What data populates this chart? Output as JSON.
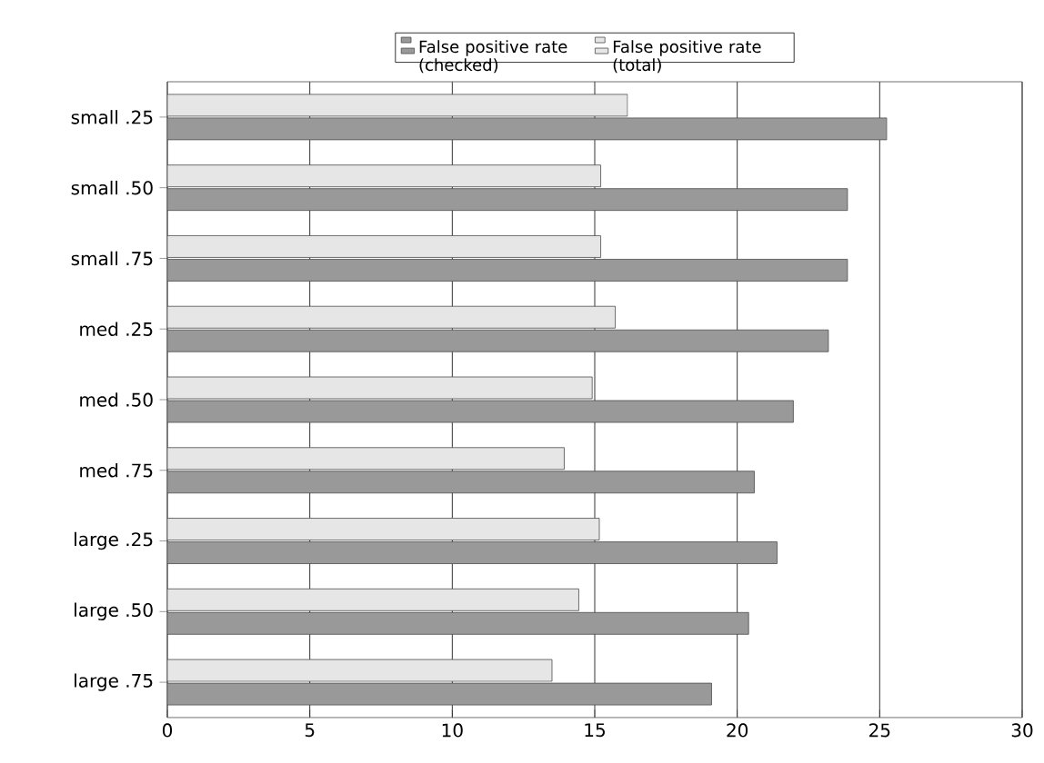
{
  "chart_data": {
    "type": "bar",
    "orientation": "horizontal",
    "categories": [
      "small .25",
      "small .50",
      "small .75",
      "med .25",
      "med .50",
      "med .75",
      "large .25",
      "large .50",
      "large .75"
    ],
    "series": [
      {
        "name": "False positive rate (checked)",
        "color": "#999999",
        "values": [
          25.25,
          23.87,
          23.87,
          23.2,
          21.97,
          20.6,
          21.4,
          20.4,
          19.1
        ]
      },
      {
        "name": "False positive rate (total)",
        "color": "#e6e6e6",
        "values": [
          16.15,
          15.21,
          15.21,
          15.72,
          14.91,
          13.93,
          15.16,
          14.44,
          13.5
        ]
      }
    ],
    "xlim": [
      0,
      30
    ],
    "xticks": [
      0,
      5,
      10,
      15,
      20,
      25,
      30
    ],
    "grid": "x",
    "legend": "top"
  }
}
